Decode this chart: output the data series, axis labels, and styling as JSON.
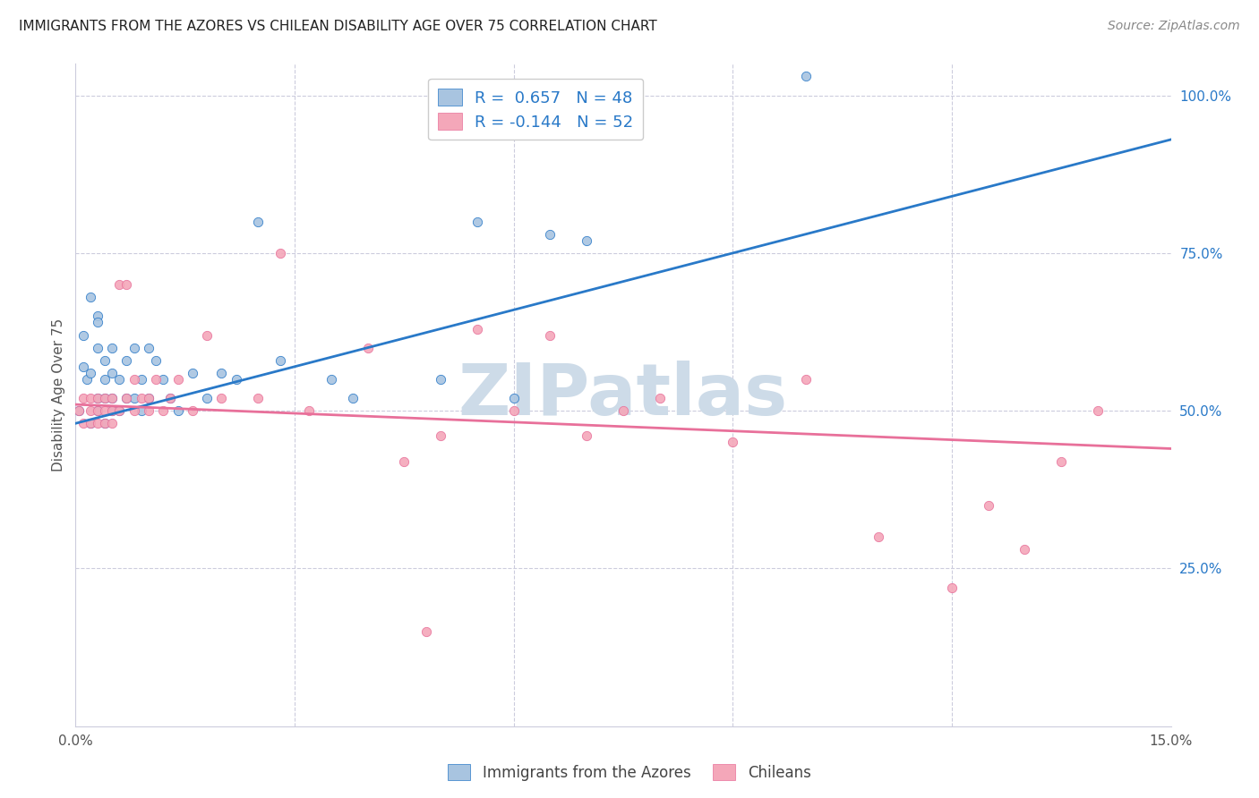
{
  "title": "IMMIGRANTS FROM THE AZORES VS CHILEAN DISABILITY AGE OVER 75 CORRELATION CHART",
  "source": "Source: ZipAtlas.com",
  "ylabel": "Disability Age Over 75",
  "xlim": [
    0.0,
    0.15
  ],
  "ylim": [
    0.0,
    1.05
  ],
  "xtick_positions": [
    0.0,
    0.03,
    0.06,
    0.09,
    0.12,
    0.15
  ],
  "xtick_labels": [
    "0.0%",
    "",
    "",
    "",
    "",
    "15.0%"
  ],
  "ytick_positions": [
    0.0,
    0.25,
    0.5,
    0.75,
    1.0
  ],
  "ytick_labels": [
    "",
    "25.0%",
    "50.0%",
    "75.0%",
    "100.0%"
  ],
  "legend_azores_r": "0.657",
  "legend_azores_n": "48",
  "legend_chileans_r": "-0.144",
  "legend_chileans_n": "52",
  "azores_color": "#a8c4e0",
  "chileans_color": "#f4a7b9",
  "azores_line_color": "#2979c8",
  "chileans_line_color": "#e8709a",
  "watermark_text": "ZIPatlas",
  "watermark_color": "#cddbe8",
  "azores_label": "Immigrants from the Azores",
  "chileans_label": "Chileans",
  "background_color": "#ffffff",
  "grid_color": "#ccccdd",
  "title_fontsize": 11,
  "azores_line_x0": 0.0,
  "azores_line_y0": 0.48,
  "azores_line_x1": 0.15,
  "azores_line_y1": 0.93,
  "chileans_line_x0": 0.0,
  "chileans_line_y0": 0.51,
  "chileans_line_x1": 0.15,
  "chileans_line_y1": 0.44,
  "azores_scatter_x": [
    0.0005,
    0.001,
    0.001,
    0.0015,
    0.002,
    0.002,
    0.002,
    0.003,
    0.003,
    0.003,
    0.003,
    0.003,
    0.004,
    0.004,
    0.004,
    0.004,
    0.005,
    0.005,
    0.005,
    0.005,
    0.006,
    0.006,
    0.007,
    0.007,
    0.008,
    0.008,
    0.009,
    0.009,
    0.01,
    0.01,
    0.011,
    0.012,
    0.013,
    0.014,
    0.016,
    0.018,
    0.02,
    0.022,
    0.025,
    0.028,
    0.035,
    0.038,
    0.05,
    0.055,
    0.06,
    0.065,
    0.07,
    0.1
  ],
  "azores_scatter_y": [
    0.5,
    0.57,
    0.62,
    0.55,
    0.56,
    0.68,
    0.48,
    0.52,
    0.65,
    0.5,
    0.6,
    0.64,
    0.48,
    0.52,
    0.55,
    0.58,
    0.5,
    0.52,
    0.56,
    0.6,
    0.5,
    0.55,
    0.52,
    0.58,
    0.52,
    0.6,
    0.5,
    0.55,
    0.52,
    0.6,
    0.58,
    0.55,
    0.52,
    0.5,
    0.56,
    0.52,
    0.56,
    0.55,
    0.8,
    0.58,
    0.55,
    0.52,
    0.55,
    0.8,
    0.52,
    0.78,
    0.77,
    1.03
  ],
  "chileans_scatter_x": [
    0.0005,
    0.001,
    0.001,
    0.002,
    0.002,
    0.002,
    0.003,
    0.003,
    0.003,
    0.004,
    0.004,
    0.004,
    0.005,
    0.005,
    0.005,
    0.006,
    0.006,
    0.007,
    0.007,
    0.008,
    0.008,
    0.009,
    0.01,
    0.01,
    0.011,
    0.012,
    0.013,
    0.014,
    0.016,
    0.018,
    0.02,
    0.025,
    0.028,
    0.032,
    0.04,
    0.05,
    0.055,
    0.06,
    0.065,
    0.07,
    0.075,
    0.08,
    0.09,
    0.1,
    0.11,
    0.12,
    0.125,
    0.13,
    0.135,
    0.14,
    0.045,
    0.048
  ],
  "chileans_scatter_y": [
    0.5,
    0.48,
    0.52,
    0.5,
    0.48,
    0.52,
    0.48,
    0.5,
    0.52,
    0.5,
    0.52,
    0.48,
    0.5,
    0.48,
    0.52,
    0.7,
    0.5,
    0.52,
    0.7,
    0.5,
    0.55,
    0.52,
    0.5,
    0.52,
    0.55,
    0.5,
    0.52,
    0.55,
    0.5,
    0.62,
    0.52,
    0.52,
    0.75,
    0.5,
    0.6,
    0.46,
    0.63,
    0.5,
    0.62,
    0.46,
    0.5,
    0.52,
    0.45,
    0.55,
    0.3,
    0.22,
    0.35,
    0.28,
    0.42,
    0.5,
    0.42,
    0.15
  ]
}
